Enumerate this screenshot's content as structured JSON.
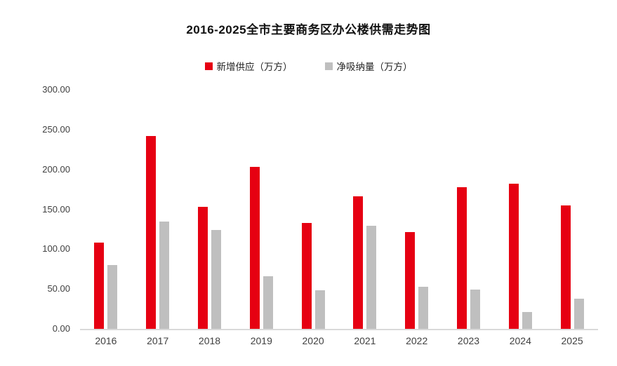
{
  "chart_data": {
    "type": "bar",
    "title": "2016-2025全市主要商务区办公楼供需走势图",
    "categories": [
      "2016",
      "2017",
      "2018",
      "2019",
      "2020",
      "2021",
      "2022",
      "2023",
      "2024",
      "2025"
    ],
    "series": [
      {
        "name": "新增供应（万方）",
        "color": "#e60012",
        "values": [
          108,
          242,
          153,
          203,
          133,
          166,
          121,
          178,
          182,
          155
        ]
      },
      {
        "name": "净吸纳量（万方）",
        "color": "#bfbfbf",
        "values": [
          80,
          135,
          124,
          66,
          48,
          129,
          53,
          49,
          21,
          38
        ]
      }
    ],
    "xlabel": "",
    "ylabel": "",
    "ylim": [
      0,
      300
    ],
    "yticks": [
      "0.00",
      "50.00",
      "100.00",
      "150.00",
      "200.00",
      "250.00",
      "300.00"
    ],
    "grid": false,
    "legend_position": "top",
    "axis_line_color": "#d9d9d9",
    "tick_label_color": "#404040"
  }
}
